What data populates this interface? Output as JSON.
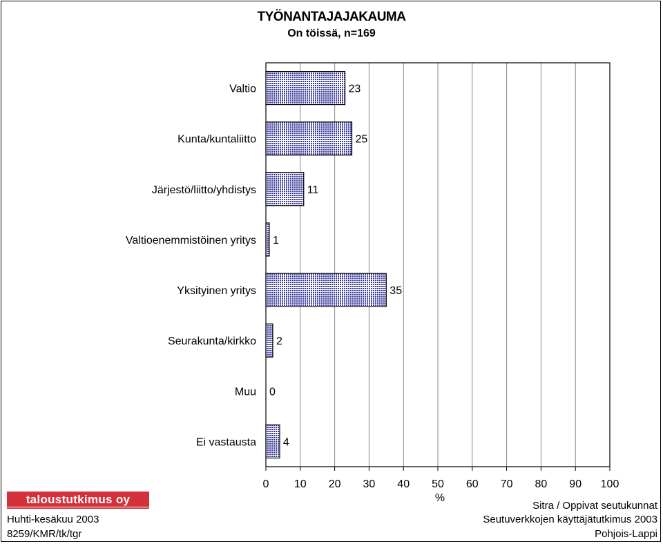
{
  "chart_data": {
    "type": "bar",
    "orientation": "horizontal",
    "title": "TYÖNANTAJAJAKAUMA",
    "subtitle": "On töissä, n=169",
    "categories": [
      "Valtio",
      "Kunta/kuntaliitto",
      "Järjestö/liitto/yhdistys",
      "Valtioenemmistöinen yritys",
      "Yksityinen yritys",
      "Seurakunta/kirkko",
      "Muu",
      "Ei vastausta"
    ],
    "values": [
      23,
      25,
      11,
      1,
      35,
      2,
      0,
      4
    ],
    "xlabel": "%",
    "xlim": [
      0,
      100
    ],
    "xticks": [
      0,
      10,
      20,
      30,
      40,
      50,
      60,
      70,
      80,
      90,
      100
    ],
    "grid": true,
    "bar_color": "#3a3a9a"
  },
  "logo": {
    "text": "taloustutkimus oy",
    "color": "#d4323a"
  },
  "footer": {
    "left": [
      "Huhti-kesäkuu 2003",
      "8259/KMR/tk/tgr"
    ],
    "right": [
      "Sitra / Oppivat seutukunnat",
      "Seutuverkkojen käyttäjätutkimus 2003",
      "Pohjois-Lappi"
    ]
  }
}
